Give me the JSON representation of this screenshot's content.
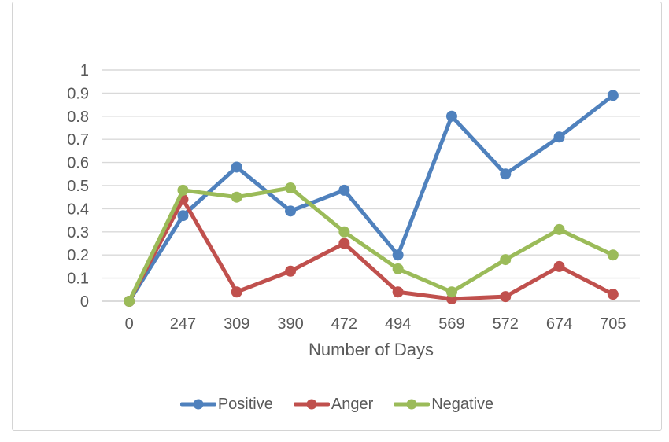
{
  "chart_data": {
    "type": "line",
    "title": "",
    "xlabel": "Number of Days",
    "ylabel": "",
    "categories": [
      "0",
      "247",
      "309",
      "390",
      "472",
      "494",
      "569",
      "572",
      "674",
      "705"
    ],
    "series": [
      {
        "name": "Positive",
        "color": "#4F81BD",
        "values": [
          0,
          0.37,
          0.58,
          0.39,
          0.48,
          0.2,
          0.8,
          0.55,
          0.71,
          0.89
        ]
      },
      {
        "name": "Anger",
        "color": "#C0504D",
        "values": [
          0,
          0.44,
          0.04,
          0.13,
          0.25,
          0.04,
          0.01,
          0.02,
          0.15,
          0.03
        ]
      },
      {
        "name": "Negative",
        "color": "#9BBB59",
        "values": [
          0,
          0.48,
          0.45,
          0.49,
          0.3,
          0.14,
          0.04,
          0.18,
          0.31,
          0.2
        ]
      }
    ],
    "ylim": [
      0,
      1
    ],
    "ytick_labels": [
      "0",
      "0.1",
      "0.2",
      "0.3",
      "0.4",
      "0.5",
      "0.6",
      "0.7",
      "0.8",
      "0.9",
      "1"
    ],
    "grid": true,
    "legend_position": "bottom",
    "marker": "circle"
  },
  "style": {
    "grid_color": "#d9d9d9",
    "axis_line_color": "#cfcfcf",
    "text_color": "#595959",
    "frame_border_color": "#d4d4d4",
    "background": "#ffffff"
  }
}
